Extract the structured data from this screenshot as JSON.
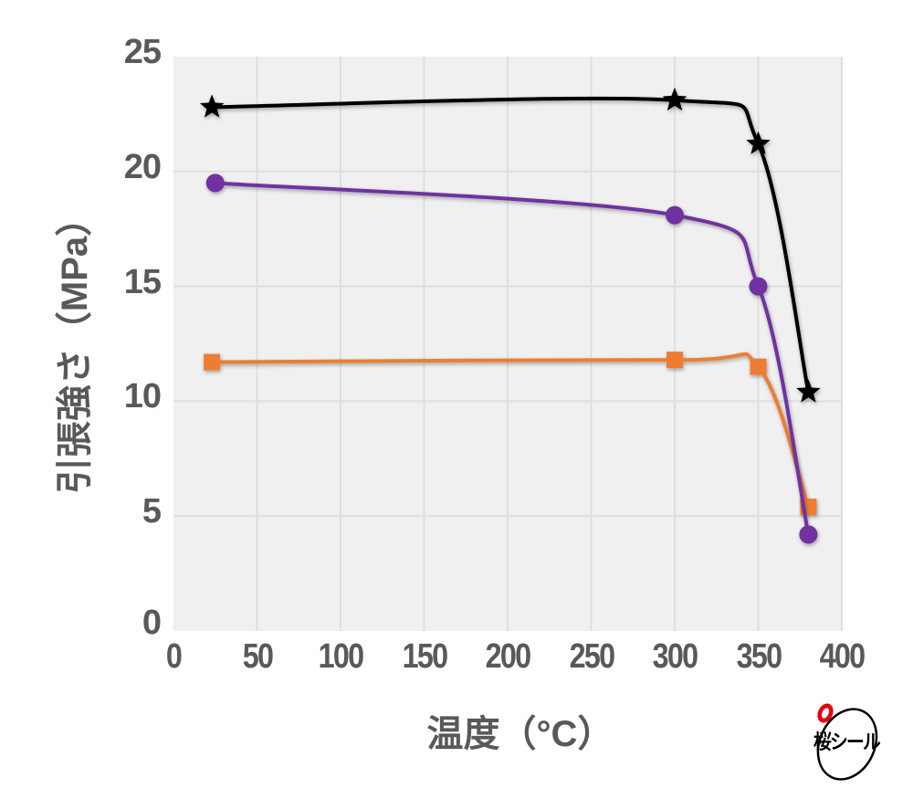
{
  "chart_data": {
    "type": "line",
    "title": "",
    "xlabel": "温度（°C）",
    "ylabel": "引張強さ（MPa）",
    "xlim": [
      0,
      400
    ],
    "ylim": [
      0,
      25
    ],
    "xticks": [
      0,
      50,
      100,
      150,
      200,
      250,
      300,
      350,
      400
    ],
    "yticks": [
      0,
      5,
      10,
      15,
      20,
      25
    ],
    "grid": true,
    "legend": null,
    "smooth": true,
    "series": [
      {
        "name": "black-star-series",
        "color": "#000000",
        "marker": "star",
        "x": [
          23,
          300,
          350,
          380
        ],
        "values": [
          22.8,
          23.1,
          21.2,
          10.4
        ]
      },
      {
        "name": "purple-circle-series",
        "color": "#7030a0",
        "marker": "circle",
        "x": [
          25,
          300,
          350,
          380
        ],
        "values": [
          19.5,
          18.1,
          15.0,
          4.2
        ]
      },
      {
        "name": "orange-square-series",
        "color": "#ed7d31",
        "marker": "square",
        "x": [
          23,
          300,
          350,
          380
        ],
        "values": [
          11.7,
          11.8,
          11.5,
          5.4
        ]
      }
    ]
  },
  "axes": {
    "x_label": "温度（°C）",
    "y_label": "引張強さ（MPa）",
    "x_ticks": [
      "0",
      "50",
      "100",
      "150",
      "200",
      "250",
      "300",
      "350",
      "400"
    ],
    "y_ticks": [
      "0",
      "5",
      "10",
      "15",
      "20",
      "25"
    ]
  },
  "logo": {
    "text": "桜シール",
    "accent_color": "#e60012"
  },
  "colors": {
    "plot_background": "#f0f0f0",
    "grid": "#dedede",
    "axis_text": "#595959"
  }
}
